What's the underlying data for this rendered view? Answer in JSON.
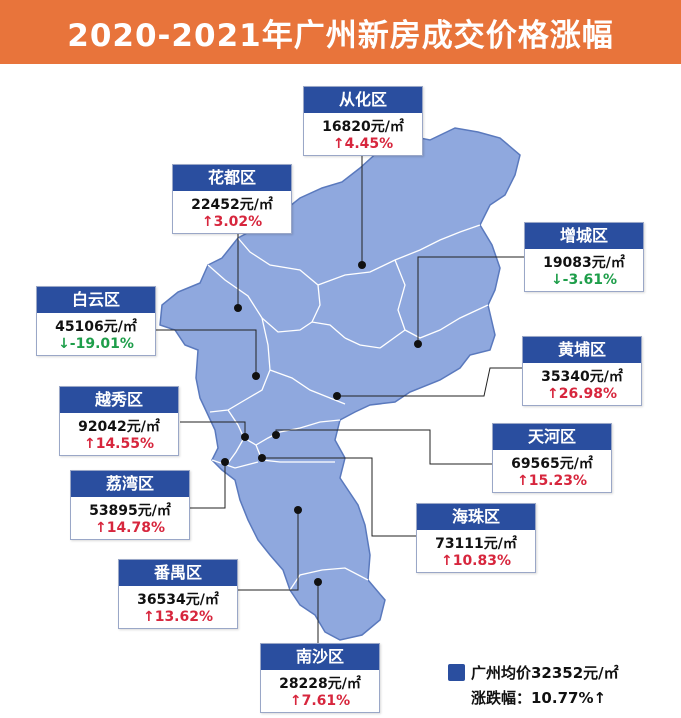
{
  "title": "2020-2021年广州新房成交价格涨幅",
  "colors": {
    "title_bg": "#e8743b",
    "map_fill": "#8fa8de",
    "map_stroke": "#5a79bd",
    "label_bg": "#2a4e9f",
    "rise": "#d7263d",
    "fall": "#1e9e4a"
  },
  "districts": [
    {
      "name": "从化区",
      "price": "16820元/㎡",
      "change": "↑4.45%",
      "trend": "up"
    },
    {
      "name": "花都区",
      "price": "22452元/㎡",
      "change": "↑3.02%",
      "trend": "up"
    },
    {
      "name": "增城区",
      "price": "19083元/㎡",
      "change": "↓-3.61%",
      "trend": "down"
    },
    {
      "name": "白云区",
      "price": "45106元/㎡",
      "change": "↓-19.01%",
      "trend": "down"
    },
    {
      "name": "黄埔区",
      "price": "35340元/㎡",
      "change": "↑26.98%",
      "trend": "up"
    },
    {
      "name": "越秀区",
      "price": "92042元/㎡",
      "change": "↑14.55%",
      "trend": "up"
    },
    {
      "name": "天河区",
      "price": "69565元/㎡",
      "change": "↑15.23%",
      "trend": "up"
    },
    {
      "name": "荔湾区",
      "price": "53895元/㎡",
      "change": "↑14.78%",
      "trend": "up"
    },
    {
      "name": "海珠区",
      "price": "73111元/㎡",
      "change": "↑10.83%",
      "trend": "up"
    },
    {
      "name": "番禺区",
      "price": "36534元/㎡",
      "change": "↑13.62%",
      "trend": "up"
    },
    {
      "name": "南沙区",
      "price": "28228元/㎡",
      "change": "↑7.61%",
      "trend": "up"
    }
  ],
  "legend": {
    "average": "广州均价32352元/㎡",
    "change": "涨跌幅：10.77%↑"
  }
}
